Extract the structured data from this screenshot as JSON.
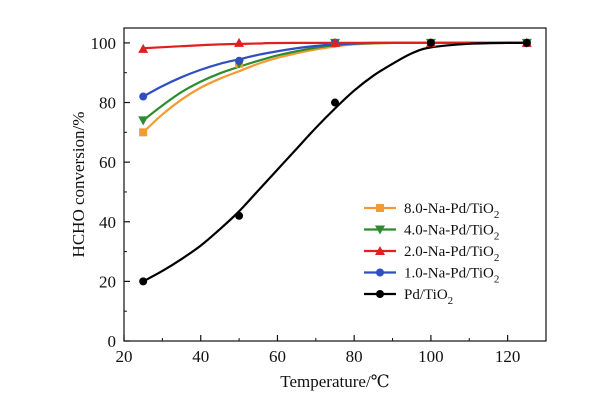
{
  "chart_data": {
    "type": "line",
    "title": "",
    "xlabel": "Temperature/℃",
    "ylabel": "HCHO conversion/%",
    "xlim": [
      20,
      130
    ],
    "ylim": [
      0,
      105
    ],
    "xticks": [
      20,
      40,
      60,
      80,
      100,
      120
    ],
    "yticks": [
      0,
      20,
      40,
      60,
      80,
      100
    ],
    "grid": false,
    "legend_position": "lower-right",
    "series": [
      {
        "name": "8.0-Na-Pd/TiO",
        "name_subscript": "2",
        "color": "#f39a35",
        "marker": "square",
        "x": [
          25,
          50,
          75,
          100,
          125
        ],
        "y": [
          70,
          93,
          100,
          100,
          100
        ],
        "curve": [
          [
            25,
            70
          ],
          [
            30,
            76
          ],
          [
            35,
            81
          ],
          [
            40,
            85
          ],
          [
            45,
            88
          ],
          [
            50,
            90.5
          ],
          [
            55,
            93
          ],
          [
            60,
            95
          ],
          [
            65,
            96.5
          ],
          [
            70,
            97.8
          ],
          [
            75,
            98.8
          ],
          [
            80,
            99.5
          ],
          [
            90,
            100
          ],
          [
            100,
            100
          ],
          [
            125,
            100
          ]
        ]
      },
      {
        "name": "4.0-Na-Pd/TiO",
        "name_subscript": "2",
        "color": "#2e8b2e",
        "marker": "triangle-down",
        "x": [
          25,
          50,
          75,
          100,
          125
        ],
        "y": [
          74,
          93,
          100,
          100,
          100
        ],
        "curve": [
          [
            25,
            74
          ],
          [
            30,
            79
          ],
          [
            35,
            83.5
          ],
          [
            40,
            87
          ],
          [
            45,
            89.8
          ],
          [
            50,
            92
          ],
          [
            55,
            94
          ],
          [
            60,
            95.8
          ],
          [
            65,
            97.2
          ],
          [
            70,
            98.4
          ],
          [
            75,
            99.2
          ],
          [
            80,
            99.7
          ],
          [
            90,
            100
          ],
          [
            100,
            100
          ],
          [
            125,
            100
          ]
        ]
      },
      {
        "name": "2.0-Na-Pd/TiO",
        "name_subscript": "2",
        "color": "#e02020",
        "marker": "triangle-up",
        "x": [
          25,
          50,
          75,
          100,
          125
        ],
        "y": [
          98,
          100,
          100,
          100,
          100
        ],
        "curve": [
          [
            25,
            98.2
          ],
          [
            35,
            98.9
          ],
          [
            45,
            99.5
          ],
          [
            55,
            99.8
          ],
          [
            65,
            100
          ],
          [
            125,
            100
          ]
        ]
      },
      {
        "name": "1.0-Na-Pd/TiO",
        "name_subscript": "2",
        "color": "#2f4fc0",
        "marker": "circle",
        "x": [
          25,
          50,
          75,
          100,
          125
        ],
        "y": [
          82,
          94,
          100,
          100,
          100
        ],
        "curve": [
          [
            25,
            82
          ],
          [
            30,
            85.5
          ],
          [
            35,
            88.5
          ],
          [
            40,
            91
          ],
          [
            45,
            93
          ],
          [
            50,
            94.5
          ],
          [
            55,
            96
          ],
          [
            60,
            97.2
          ],
          [
            65,
            98.2
          ],
          [
            70,
            99
          ],
          [
            75,
            99.5
          ],
          [
            85,
            100
          ],
          [
            100,
            100
          ],
          [
            125,
            100
          ]
        ]
      },
      {
        "name": "Pd/TiO",
        "name_subscript": "2",
        "color": "#000000",
        "marker": "circle",
        "x": [
          25,
          50,
          75,
          100,
          125
        ],
        "y": [
          20,
          42,
          80,
          100,
          100
        ],
        "curve": [
          [
            25,
            20
          ],
          [
            30,
            23.5
          ],
          [
            35,
            27.5
          ],
          [
            40,
            32
          ],
          [
            45,
            37.5
          ],
          [
            50,
            43.5
          ],
          [
            55,
            50.5
          ],
          [
            60,
            57.5
          ],
          [
            65,
            64.5
          ],
          [
            70,
            71.5
          ],
          [
            75,
            78
          ],
          [
            80,
            84
          ],
          [
            85,
            89
          ],
          [
            90,
            93
          ],
          [
            95,
            96.5
          ],
          [
            100,
            98.5
          ],
          [
            110,
            99.7
          ],
          [
            120,
            100
          ],
          [
            125,
            100
          ]
        ]
      }
    ]
  }
}
